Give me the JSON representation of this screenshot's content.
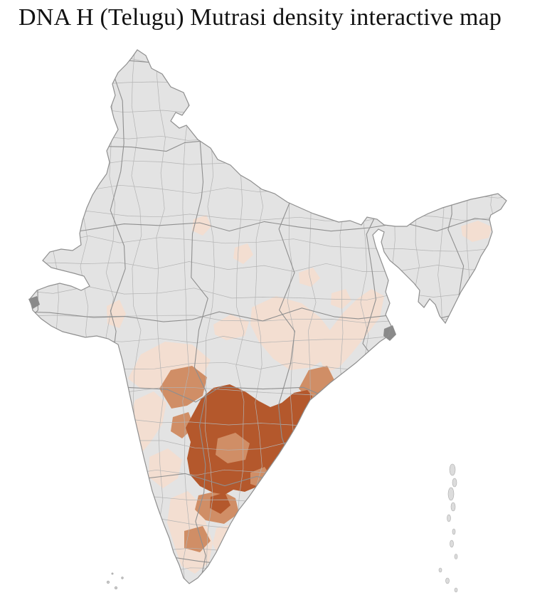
{
  "page": {
    "title": "DNA H (Telugu) Mutrasi density interactive map",
    "background_color": "#ffffff"
  },
  "map": {
    "region": "India",
    "type": "choropleth",
    "density_levels": [
      "none",
      "low",
      "medium",
      "high"
    ],
    "colors": {
      "no_data": "#e3e3e3",
      "density_low": "#f3ded1",
      "density_medium": "#d08e66",
      "density_high": "#b4582c",
      "district_border": "#b3b3b3",
      "state_border": "#8f8f8f",
      "urban_marker": "#8a8a8a",
      "island": "#dcdcdc",
      "island_border": "#aaaaaa"
    }
  }
}
